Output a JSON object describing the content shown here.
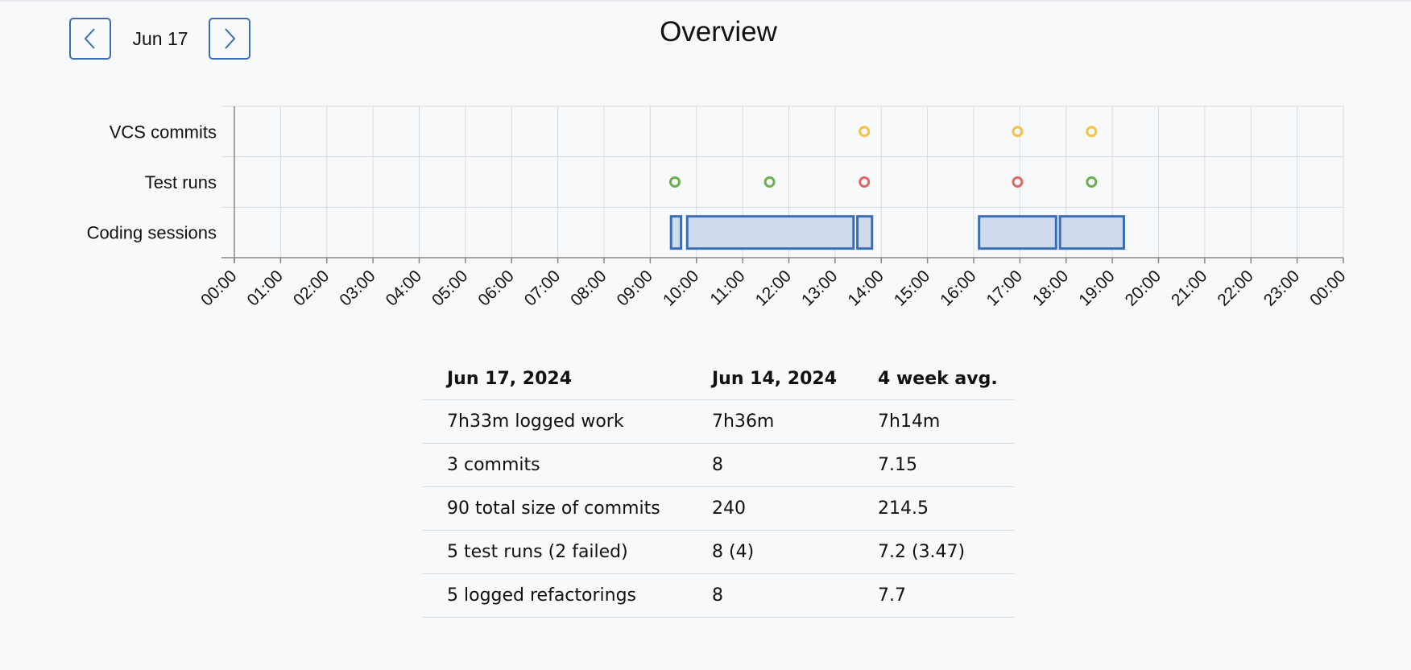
{
  "header": {
    "title": "Overview",
    "date": "Jun 17"
  },
  "chart_data": {
    "type": "timeline",
    "rows": [
      "VCS commits",
      "Test runs",
      "Coding sessions"
    ],
    "x_ticks": [
      "00:00",
      "01:00",
      "02:00",
      "03:00",
      "04:00",
      "05:00",
      "06:00",
      "07:00",
      "08:00",
      "09:00",
      "10:00",
      "11:00",
      "12:00",
      "13:00",
      "14:00",
      "15:00",
      "16:00",
      "17:00",
      "18:00",
      "19:00",
      "20:00",
      "21:00",
      "22:00",
      "23:00",
      "00:00"
    ],
    "x_range_hours": [
      0,
      24
    ],
    "grid": true,
    "colors": {
      "commit": "#f5c242",
      "test_pass": "#6ab04c",
      "test_fail": "#e06666",
      "session_stroke": "#3a6db3",
      "session_fill": "#cfdbec"
    },
    "commits": [
      "13:38",
      "16:57",
      "18:33"
    ],
    "test_runs": [
      {
        "time": "09:32",
        "result": "passed"
      },
      {
        "time": "11:35",
        "result": "passed"
      },
      {
        "time": "13:38",
        "result": "failed"
      },
      {
        "time": "16:57",
        "result": "failed"
      },
      {
        "time": "18:33",
        "result": "passed"
      }
    ],
    "coding_sessions": [
      {
        "start": "09:27",
        "end": "09:40"
      },
      {
        "start": "09:48",
        "end": "13:24"
      },
      {
        "start": "13:29",
        "end": "13:48"
      },
      {
        "start": "16:07",
        "end": "17:47"
      },
      {
        "start": "17:52",
        "end": "19:15"
      }
    ]
  },
  "stats": {
    "headers": [
      "Jun 17, 2024",
      "Jun 14, 2024",
      "4 week avg."
    ],
    "rows": [
      [
        "7h33m logged work",
        "7h36m",
        "7h14m"
      ],
      [
        "3 commits",
        "8",
        "7.15"
      ],
      [
        "90 total size of commits",
        "240",
        "214.5"
      ],
      [
        "5 test runs (2 failed)",
        "8 (4)",
        "7.2 (3.47)"
      ],
      [
        "5 logged refactorings",
        "8",
        "7.7"
      ]
    ]
  }
}
